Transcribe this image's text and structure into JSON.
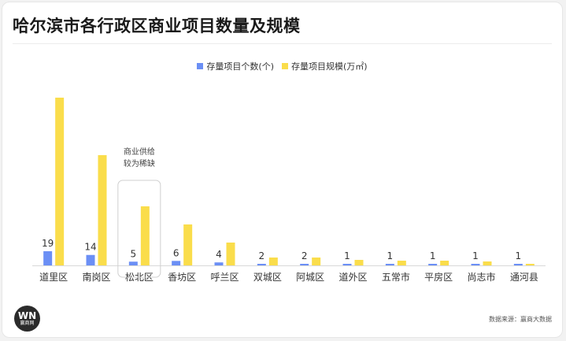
{
  "title": "哈尔滨市各行政区商业项目数量及规模",
  "logo": {
    "mark": "WN",
    "text": "赢商网"
  },
  "source": "数据来源：赢商大数据",
  "colors": {
    "count": "#6b8ff5",
    "scale": "#fadd4b",
    "axis": "#d9d9d9"
  },
  "chart_data": {
    "type": "bar",
    "categories": [
      "道里区",
      "南岗区",
      "松北区",
      "香坊区",
      "呼兰区",
      "双城区",
      "阿城区",
      "道外区",
      "五常市",
      "平房区",
      "尚志市",
      "通河县"
    ],
    "series": [
      {
        "name": "存量项目个数(个)",
        "values": [
          19,
          14,
          5,
          6,
          4,
          2,
          2,
          1,
          1,
          1,
          1,
          1
        ],
        "labeled": true
      },
      {
        "name": "存量项目规模(万㎡)",
        "values": [
          213,
          140,
          75,
          52,
          29,
          10,
          10,
          7,
          6,
          6,
          5,
          2
        ],
        "labeled": false
      }
    ],
    "legend": "top",
    "grid": false,
    "annotation": {
      "category": "松北区",
      "lines": [
        "商业供给",
        "较为稀缺"
      ]
    }
  }
}
